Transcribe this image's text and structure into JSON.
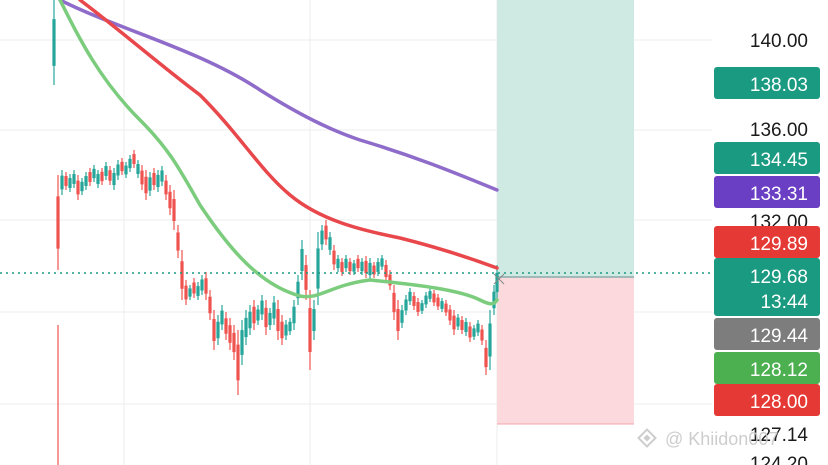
{
  "price_axis": {
    "labels": [
      "140.00",
      "136.00",
      "132.00",
      "127.14",
      "124.20"
    ]
  },
  "price_tags": [
    {
      "value": "138.03",
      "color": "#1b9a82",
      "sub": ""
    },
    {
      "value": "134.45",
      "color": "#1b9a82",
      "sub": ""
    },
    {
      "value": "133.31",
      "color": "#6a3fc4",
      "sub": ""
    },
    {
      "value": "129.89",
      "color": "#e53935",
      "sub": ""
    },
    {
      "value": "129.68",
      "color": "#1b9a82",
      "sub": "13:44"
    },
    {
      "value": "129.44",
      "color": "#7d7d7d",
      "sub": ""
    },
    {
      "value": "128.12",
      "color": "#4caf50",
      "sub": ""
    },
    {
      "value": "128.00",
      "color": "#e53935",
      "sub": ""
    }
  ],
  "position_tool": {
    "entry": 129.68,
    "take_profit": 138.03,
    "stop_loss": 128.0,
    "profit_color": "#cfeae3",
    "loss_color": "#fbd9dc"
  },
  "moving_averages": [
    {
      "color": "#8f6cc9"
    },
    {
      "color": "#e8484b"
    },
    {
      "color": "#7ccc7e"
    }
  ],
  "candle_colors": {
    "up": "#26a69a",
    "down": "#ef5350"
  },
  "watermark": {
    "text": "@ Khiidon007",
    "icon": "binance-logo-icon"
  }
}
